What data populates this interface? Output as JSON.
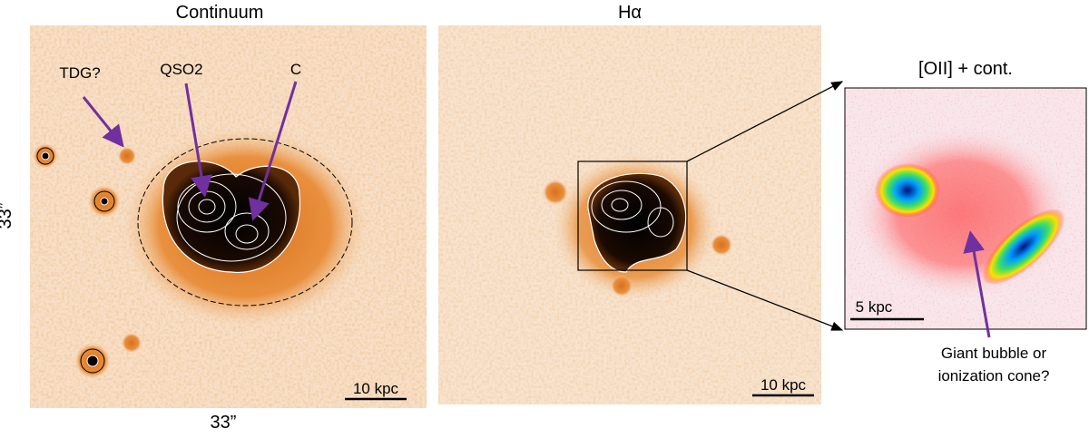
{
  "panels": [
    {
      "title": "Continuum",
      "labels": [
        "TDG?",
        "QSO2",
        "C"
      ],
      "scale_bar": "10 kpc",
      "y_size": "33”",
      "x_size": "33”"
    },
    {
      "title": "Hα",
      "scale_bar": "10 kpc"
    },
    {
      "title": "[OII] + cont.",
      "scale_bar": "5 kpc",
      "annotation": [
        "Giant bubble or",
        "ionization cone?"
      ]
    }
  ]
}
